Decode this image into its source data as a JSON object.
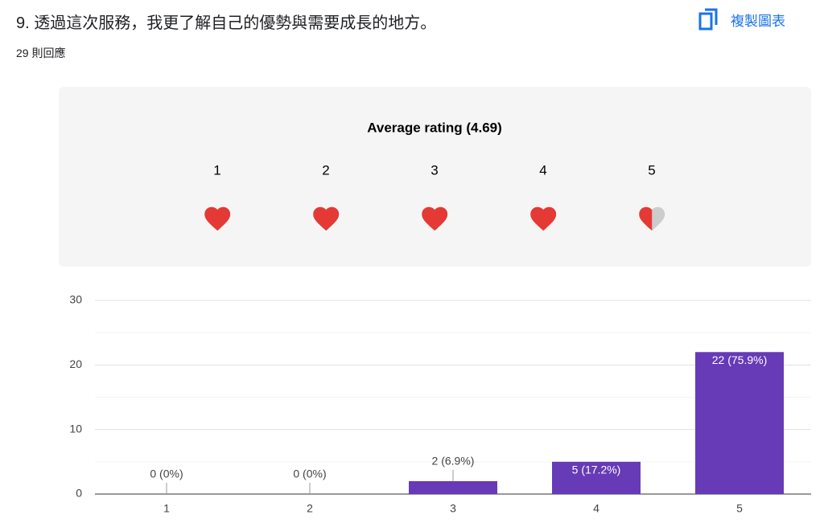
{
  "header": {
    "question": "9. 透過這次服務，我更了解自己的優勢與需要成長的地方。",
    "responses": "29 則回應",
    "copy_button": "複製圖表"
  },
  "rating": {
    "title": "Average rating (4.69)",
    "scale": [
      1,
      2,
      3,
      4,
      5
    ],
    "fill": [
      1,
      1,
      1,
      1,
      0.5
    ],
    "color": "#e53935",
    "empty_color": "#cccccc"
  },
  "chart_data": {
    "type": "bar",
    "categories": [
      "1",
      "2",
      "3",
      "4",
      "5"
    ],
    "values": [
      0,
      0,
      2,
      5,
      22
    ],
    "value_labels": [
      "0 (0%)",
      "0 (0%)",
      "2 (6.9%)",
      "5 (17.2%)",
      "22 (75.9%)"
    ],
    "color": "#673ab7",
    "ylim": [
      0,
      30
    ],
    "yticks": [
      0,
      10,
      20,
      30
    ],
    "minor_yticks": [
      5,
      15,
      25
    ],
    "grid": true
  }
}
